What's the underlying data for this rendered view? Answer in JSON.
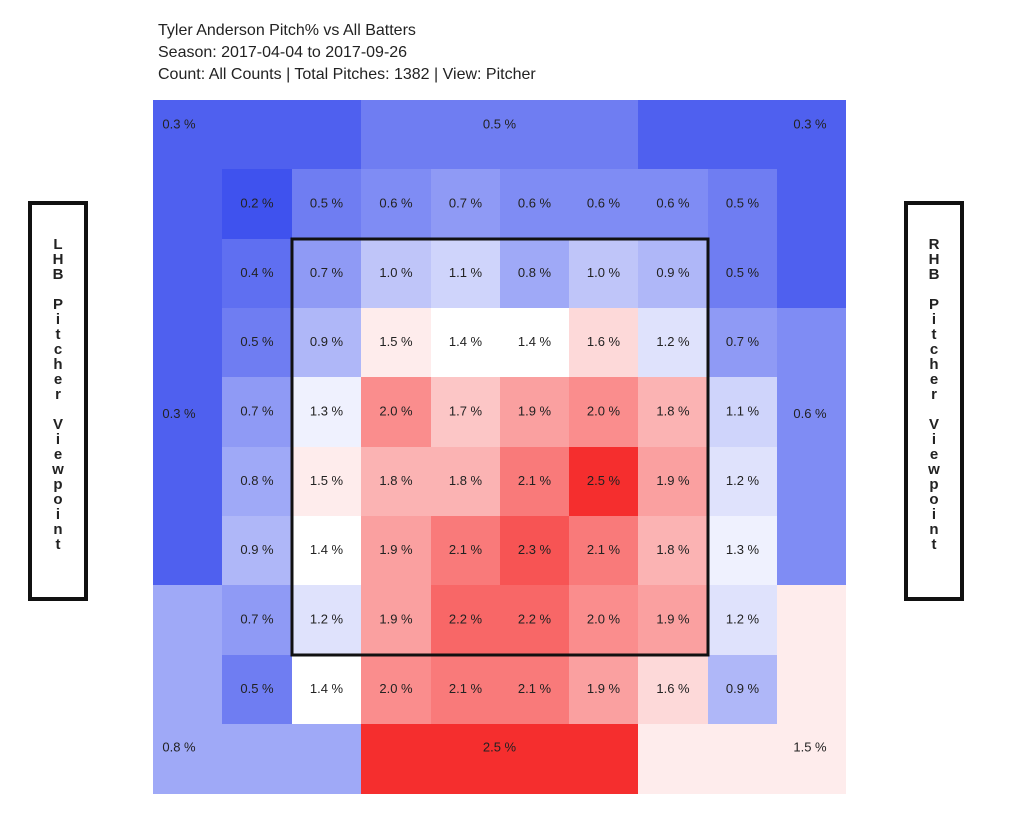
{
  "header": {
    "title": "Tyler Anderson Pitch% vs All Batters",
    "season": "Season: 2017-04-04 to 2017-09-26",
    "count_line": "Count: All Counts | Total Pitches: 1382 | View: Pitcher"
  },
  "side_labels": {
    "left": "LHB Pitcher Viewpoint",
    "right": "RHB Pitcher Viewpoint"
  },
  "colors": {
    "low": "#3f52ee",
    "mid": "#ffffff",
    "high": "#f52e2e",
    "border": "#111111"
  },
  "chart_data": {
    "type": "heatmap",
    "title": "Tyler Anderson Pitch% vs All Batters",
    "unit": "%",
    "color_scale": {
      "min": 0.2,
      "mid": 1.4,
      "max": 2.5
    },
    "inner_grid": [
      [
        "0.2 %",
        "0.5 %",
        "0.6 %",
        "0.7 %",
        "0.6 %",
        "0.6 %",
        "0.6 %",
        "0.5 %"
      ],
      [
        "0.4 %",
        "0.7 %",
        "1.0 %",
        "1.1 %",
        "0.8 %",
        "1.0 %",
        "0.9 %",
        "0.5 %"
      ],
      [
        "0.5 %",
        "0.9 %",
        "1.5 %",
        "1.4 %",
        "1.4 %",
        "1.6 %",
        "1.2 %",
        "0.7 %"
      ],
      [
        "0.7 %",
        "1.3 %",
        "2.0 %",
        "1.7 %",
        "1.9 %",
        "2.0 %",
        "1.8 %",
        "1.1 %"
      ],
      [
        "0.8 %",
        "1.5 %",
        "1.8 %",
        "1.8 %",
        "2.1 %",
        "2.5 %",
        "1.9 %",
        "1.2 %"
      ],
      [
        "0.9 %",
        "1.4 %",
        "1.9 %",
        "2.1 %",
        "2.3 %",
        "2.1 %",
        "1.8 %",
        "1.3 %"
      ],
      [
        "0.7 %",
        "1.2 %",
        "1.9 %",
        "2.2 %",
        "2.2 %",
        "2.0 %",
        "1.9 %",
        "1.2 %"
      ],
      [
        "0.5 %",
        "1.4 %",
        "2.0 %",
        "2.1 %",
        "2.1 %",
        "1.9 %",
        "1.6 %",
        "0.9 %"
      ]
    ],
    "outer_regions": [
      {
        "name": "top-left",
        "label": "0.3 %"
      },
      {
        "name": "top-middle",
        "label": "0.5 %"
      },
      {
        "name": "top-right",
        "label": "0.3 %"
      },
      {
        "name": "middle-left",
        "label": "0.3 %"
      },
      {
        "name": "middle-right",
        "label": "0.6 %"
      },
      {
        "name": "bottom-left",
        "label": "0.8 %"
      },
      {
        "name": "bottom-middle",
        "label": "2.5 %"
      },
      {
        "name": "bottom-right",
        "label": "1.5 %"
      }
    ]
  }
}
